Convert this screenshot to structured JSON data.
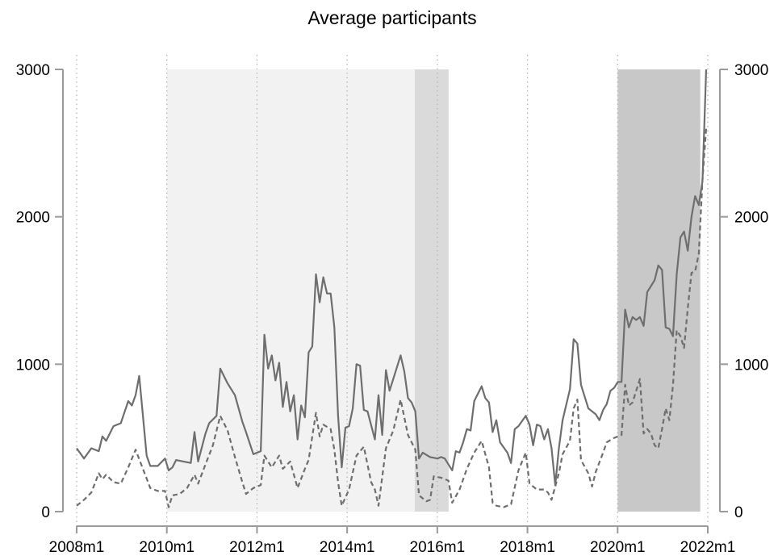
{
  "chart_data": {
    "type": "line",
    "title": "Average participants",
    "xlabel": "",
    "ylabel": "",
    "xlim": [
      "2008m1",
      "2022m1"
    ],
    "ylim": [
      0,
      3000
    ],
    "ylim_right": [
      0,
      3000
    ],
    "grid": "vertical dotted",
    "legend": "none",
    "x_ticks": [
      "2008m1",
      "2010m1",
      "2012m1",
      "2014m1",
      "2016m1",
      "2018m1",
      "2020m1",
      "2022m1"
    ],
    "y_ticks": [
      "0",
      "1000",
      "2000",
      "3000"
    ],
    "y_ticks_right": [
      "0",
      "1000",
      "2000",
      "3000"
    ],
    "shaded_periods": [
      {
        "start": "2010m1",
        "end": "2015m7",
        "color": "#f2f2f2"
      },
      {
        "start": "2015m7",
        "end": "2016m4",
        "color": "#dadada"
      },
      {
        "start": "2020m1",
        "end": "2021m11",
        "color": "#c8c8c8"
      }
    ],
    "colors": {
      "series_stroke": "#6e6e6e",
      "axis": "#9a9a9a",
      "grid": "#b4b4b4"
    },
    "series": [
      {
        "style": "solid",
        "axis": "left",
        "points": [
          [
            "2008m1",
            430
          ],
          [
            "2008m3",
            360
          ],
          [
            "2008m5",
            430
          ],
          [
            "2008m7",
            410
          ],
          [
            "2008m8",
            510
          ],
          [
            "2008m9",
            480
          ],
          [
            "2008m11",
            580
          ],
          [
            "2009m1",
            600
          ],
          [
            "2009m3",
            750
          ],
          [
            "2009m4",
            720
          ],
          [
            "2009m5",
            790
          ],
          [
            "2009m6",
            920
          ],
          [
            "2009m8",
            380
          ],
          [
            "2009m9",
            310
          ],
          [
            "2009m11",
            310
          ],
          [
            "2010m1",
            360
          ],
          [
            "2010m2",
            280
          ],
          [
            "2010m3",
            300
          ],
          [
            "2010m4",
            350
          ],
          [
            "2010m6",
            340
          ],
          [
            "2010m8",
            330
          ],
          [
            "2010m9",
            540
          ],
          [
            "2010m10",
            340
          ],
          [
            "2010m12",
            530
          ],
          [
            "2011m1",
            600
          ],
          [
            "2011m3",
            650
          ],
          [
            "2011m4",
            970
          ],
          [
            "2011m6",
            870
          ],
          [
            "2011m8",
            790
          ],
          [
            "2011m10",
            610
          ],
          [
            "2011m11",
            540
          ],
          [
            "2012m1",
            390
          ],
          [
            "2012m3",
            410
          ],
          [
            "2012m4",
            1200
          ],
          [
            "2012m5",
            970
          ],
          [
            "2012m6",
            1060
          ],
          [
            "2012m7",
            890
          ],
          [
            "2012m8",
            1010
          ],
          [
            "2012m9",
            710
          ],
          [
            "2012m10",
            880
          ],
          [
            "2012m11",
            680
          ],
          [
            "2012m12",
            790
          ],
          [
            "2013m1",
            490
          ],
          [
            "2013m2",
            720
          ],
          [
            "2013m3",
            640
          ],
          [
            "2013m4",
            1080
          ],
          [
            "2013m5",
            1120
          ],
          [
            "2013m6",
            1610
          ],
          [
            "2013m7",
            1420
          ],
          [
            "2013m8",
            1590
          ],
          [
            "2013m9",
            1480
          ],
          [
            "2013m10",
            1480
          ],
          [
            "2013m11",
            1250
          ],
          [
            "2013m12",
            650
          ],
          [
            "2014m1",
            300
          ],
          [
            "2014m2",
            570
          ],
          [
            "2014m3",
            580
          ],
          [
            "2014m4",
            700
          ],
          [
            "2014m5",
            1000
          ],
          [
            "2014m6",
            990
          ],
          [
            "2014m7",
            690
          ],
          [
            "2014m8",
            680
          ],
          [
            "2014m10",
            490
          ],
          [
            "2014m11",
            790
          ],
          [
            "2014m12",
            520
          ],
          [
            "2015m1",
            960
          ],
          [
            "2015m2",
            820
          ],
          [
            "2015m3",
            900
          ],
          [
            "2015m5",
            1060
          ],
          [
            "2015m6",
            950
          ],
          [
            "2015m7",
            770
          ],
          [
            "2015m8",
            740
          ],
          [
            "2015m9",
            680
          ],
          [
            "2015m10",
            360
          ],
          [
            "2015m11",
            400
          ],
          [
            "2016m1",
            370
          ],
          [
            "2016m3",
            360
          ],
          [
            "2016m4",
            370
          ],
          [
            "2016m5",
            360
          ],
          [
            "2016m7",
            280
          ],
          [
            "2016m8",
            410
          ],
          [
            "2016m9",
            400
          ],
          [
            "2016m10",
            470
          ],
          [
            "2016m11",
            560
          ],
          [
            "2016m12",
            550
          ],
          [
            "2017m1",
            750
          ],
          [
            "2017m3",
            850
          ],
          [
            "2017m4",
            770
          ],
          [
            "2017m5",
            740
          ],
          [
            "2017m6",
            540
          ],
          [
            "2017m7",
            620
          ],
          [
            "2017m8",
            470
          ],
          [
            "2017m10",
            400
          ],
          [
            "2017m11",
            330
          ],
          [
            "2017m12",
            560
          ],
          [
            "2018m1",
            580
          ],
          [
            "2018m3",
            650
          ],
          [
            "2018m4",
            590
          ],
          [
            "2018m5",
            450
          ],
          [
            "2018m6",
            590
          ],
          [
            "2018m7",
            580
          ],
          [
            "2018m8",
            490
          ],
          [
            "2018m9",
            560
          ],
          [
            "2018m10",
            430
          ],
          [
            "2018m11",
            180
          ],
          [
            "2018m12",
            430
          ],
          [
            "2019m1",
            620
          ],
          [
            "2019m3",
            830
          ],
          [
            "2019m4",
            1170
          ],
          [
            "2019m5",
            1140
          ],
          [
            "2019m6",
            860
          ],
          [
            "2019m8",
            700
          ],
          [
            "2019m10",
            660
          ],
          [
            "2019m11",
            620
          ],
          [
            "2019m12",
            690
          ],
          [
            "2020m1",
            730
          ],
          [
            "2020m2",
            820
          ],
          [
            "2020m3",
            840
          ],
          [
            "2020m4",
            880
          ],
          [
            "2020m5",
            880
          ],
          [
            "2020m6",
            1370
          ],
          [
            "2020m7",
            1250
          ],
          [
            "2020m8",
            1320
          ],
          [
            "2020m9",
            1300
          ],
          [
            "2020m10",
            1320
          ],
          [
            "2020m11",
            1260
          ],
          [
            "2020m12",
            1490
          ],
          [
            "2021m1",
            1530
          ],
          [
            "2021m2",
            1570
          ],
          [
            "2021m3",
            1670
          ],
          [
            "2021m4",
            1640
          ],
          [
            "2021m5",
            1250
          ],
          [
            "2021m6",
            1240
          ],
          [
            "2021m7",
            1190
          ],
          [
            "2021m8",
            1610
          ],
          [
            "2021m9",
            1860
          ],
          [
            "2021m10",
            1900
          ],
          [
            "2021m11",
            1770
          ],
          [
            "2021m12",
            2000
          ],
          [
            "2022m1",
            2140
          ],
          [
            "2022m2",
            2080
          ],
          [
            "2022m3",
            2240
          ],
          [
            "2022m4",
            3000
          ]
        ]
      },
      {
        "style": "dashed",
        "axis": "right",
        "points": [
          [
            "2008m1",
            40
          ],
          [
            "2008m3",
            80
          ],
          [
            "2008m5",
            130
          ],
          [
            "2008m7",
            260
          ],
          [
            "2008m8",
            220
          ],
          [
            "2008m9",
            250
          ],
          [
            "2008m11",
            200
          ],
          [
            "2009m1",
            190
          ],
          [
            "2009m3",
            300
          ],
          [
            "2009m5",
            420
          ],
          [
            "2009m7",
            290
          ],
          [
            "2009m9",
            160
          ],
          [
            "2009m11",
            140
          ],
          [
            "2010m1",
            140
          ],
          [
            "2010m2",
            30
          ],
          [
            "2010m3",
            110
          ],
          [
            "2010m5",
            120
          ],
          [
            "2010m7",
            160
          ],
          [
            "2010m9",
            250
          ],
          [
            "2010m10",
            190
          ],
          [
            "2010m12",
            320
          ],
          [
            "2011m2",
            450
          ],
          [
            "2011m4",
            650
          ],
          [
            "2011m6",
            550
          ],
          [
            "2011m8",
            370
          ],
          [
            "2011m10",
            200
          ],
          [
            "2011m11",
            120
          ],
          [
            "2012m1",
            160
          ],
          [
            "2012m3",
            180
          ],
          [
            "2012m4",
            380
          ],
          [
            "2012m6",
            300
          ],
          [
            "2012m8",
            380
          ],
          [
            "2012m9",
            290
          ],
          [
            "2012m11",
            340
          ],
          [
            "2013m1",
            160
          ],
          [
            "2013m3",
            290
          ],
          [
            "2013m4",
            350
          ],
          [
            "2013m6",
            670
          ],
          [
            "2013m7",
            510
          ],
          [
            "2013m8",
            590
          ],
          [
            "2013m10",
            560
          ],
          [
            "2013m11",
            420
          ],
          [
            "2013m12",
            200
          ],
          [
            "2014m1",
            40
          ],
          [
            "2014m3",
            150
          ],
          [
            "2014m5",
            380
          ],
          [
            "2014m7",
            440
          ],
          [
            "2014m9",
            200
          ],
          [
            "2014m10",
            150
          ],
          [
            "2014m11",
            40
          ],
          [
            "2015m1",
            430
          ],
          [
            "2015m3",
            550
          ],
          [
            "2015m5",
            760
          ],
          [
            "2015m7",
            520
          ],
          [
            "2015m9",
            420
          ],
          [
            "2015m10",
            110
          ],
          [
            "2015m12",
            70
          ],
          [
            "2016m1",
            80
          ],
          [
            "2016m2",
            240
          ],
          [
            "2016m4",
            230
          ],
          [
            "2016m6",
            210
          ],
          [
            "2016m7",
            60
          ],
          [
            "2016m9",
            150
          ],
          [
            "2016m11",
            290
          ],
          [
            "2017m1",
            400
          ],
          [
            "2017m3",
            480
          ],
          [
            "2017m5",
            300
          ],
          [
            "2017m6",
            60
          ],
          [
            "2017m7",
            40
          ],
          [
            "2017m9",
            30
          ],
          [
            "2017m11",
            50
          ],
          [
            "2018m1",
            280
          ],
          [
            "2018m3",
            400
          ],
          [
            "2018m4",
            190
          ],
          [
            "2018m6",
            150
          ],
          [
            "2018m8",
            150
          ],
          [
            "2018m9",
            130
          ],
          [
            "2018m10",
            80
          ],
          [
            "2018m12",
            260
          ],
          [
            "2019m1",
            390
          ],
          [
            "2019m3",
            480
          ],
          [
            "2019m4",
            700
          ],
          [
            "2019m5",
            760
          ],
          [
            "2019m6",
            350
          ],
          [
            "2019m8",
            260
          ],
          [
            "2019m9",
            170
          ],
          [
            "2019m10",
            270
          ],
          [
            "2019m12",
            400
          ],
          [
            "2020m1",
            470
          ],
          [
            "2020m3",
            500
          ],
          [
            "2020m5",
            520
          ],
          [
            "2020m6",
            860
          ],
          [
            "2020m7",
            720
          ],
          [
            "2020m8",
            740
          ],
          [
            "2020m9",
            820
          ],
          [
            "2020m10",
            900
          ],
          [
            "2020m11",
            530
          ],
          [
            "2020m12",
            560
          ],
          [
            "2021m1",
            530
          ],
          [
            "2021m2",
            450
          ],
          [
            "2021m3",
            430
          ],
          [
            "2021m4",
            560
          ],
          [
            "2021m5",
            700
          ],
          [
            "2021m6",
            620
          ],
          [
            "2021m7",
            860
          ],
          [
            "2021m8",
            1230
          ],
          [
            "2021m9",
            1190
          ],
          [
            "2021m10",
            1110
          ],
          [
            "2021m11",
            1380
          ],
          [
            "2021m12",
            1620
          ],
          [
            "2022m1",
            1630
          ],
          [
            "2022m2",
            1750
          ],
          [
            "2022m3",
            2250
          ],
          [
            "2022m4",
            2600
          ]
        ]
      }
    ]
  }
}
